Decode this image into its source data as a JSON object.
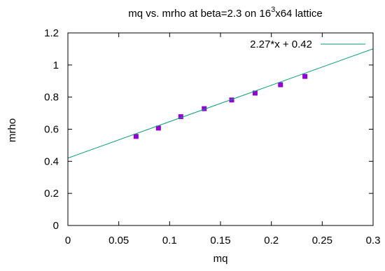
{
  "chart_data": {
    "type": "scatter",
    "title": {
      "prefix": "mq vs. mrho at beta=2.3 on 16",
      "superscript": "3",
      "suffix": "x64 lattice"
    },
    "xlabel": "mq",
    "ylabel": "mrho",
    "xlim": [
      0,
      0.3
    ],
    "ylim": [
      0,
      1.2
    ],
    "x_ticks": [
      "0",
      "0.05",
      "0.1",
      "0.15",
      "0.2",
      "0.25",
      "0.3"
    ],
    "y_ticks": [
      "0",
      "0.2",
      "0.4",
      "0.6",
      "0.8",
      "1",
      "1.2"
    ],
    "grid": false,
    "legend_position": "top-right",
    "series": [
      {
        "kind": "points",
        "color": "#9400d3",
        "marker": "square",
        "points": [
          {
            "x": 0.067,
            "y": 0.555
          },
          {
            "x": 0.089,
            "y": 0.607
          },
          {
            "x": 0.111,
            "y": 0.678
          },
          {
            "x": 0.134,
            "y": 0.728
          },
          {
            "x": 0.161,
            "y": 0.782
          },
          {
            "x": 0.184,
            "y": 0.825
          },
          {
            "x": 0.209,
            "y": 0.877
          },
          {
            "x": 0.233,
            "y": 0.929
          }
        ]
      },
      {
        "kind": "fit-line",
        "name": "2.27*x + 0.42",
        "color": "#009e73",
        "slope": 2.27,
        "intercept": 0.42
      }
    ]
  }
}
